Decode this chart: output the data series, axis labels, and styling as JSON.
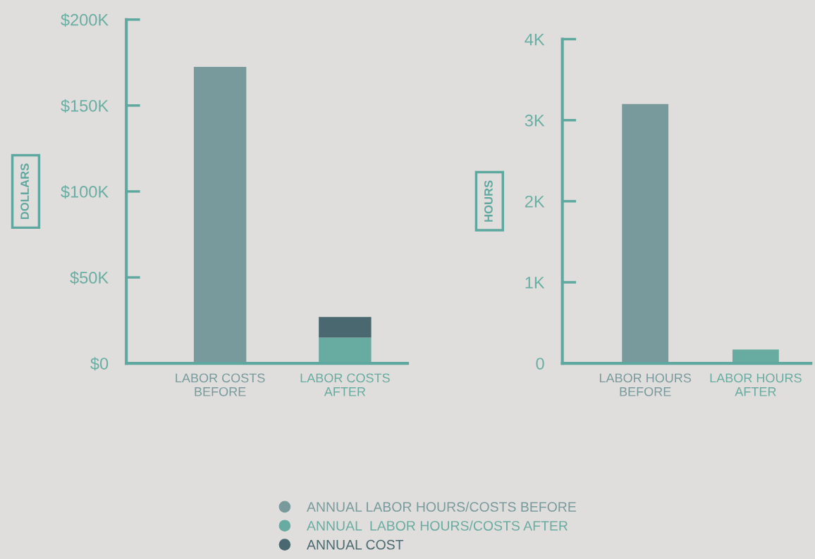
{
  "chart_data": [
    {
      "type": "bar",
      "ylabel": "DOLLARS",
      "categories": [
        "LABOR COSTS\nBEFORE",
        "LABOR COSTS\nAFTER"
      ],
      "stacked": true,
      "series": [
        {
          "name": "ANNUAL LABOR HOURS/COSTS BEFORE",
          "color": "#789a9c",
          "values": [
            172500,
            null
          ]
        },
        {
          "name": "ANNUAL  LABOR HOURS/COSTS AFTER",
          "color": "#68aba0",
          "values": [
            null,
            15000
          ]
        },
        {
          "name": "ANNUAL COST",
          "color": "#4a6870",
          "values": [
            null,
            12000
          ]
        }
      ],
      "ylim": [
        0,
        200000
      ],
      "yticks": [
        {
          "value": 0,
          "label": "$0"
        },
        {
          "value": 50000,
          "label": "$50K"
        },
        {
          "value": 100000,
          "label": "$100K"
        },
        {
          "value": 150000,
          "label": "$150K"
        },
        {
          "value": 200000,
          "label": "$200K"
        }
      ],
      "grid": false,
      "legend": "bottom"
    },
    {
      "type": "bar",
      "ylabel": "HOURS",
      "categories": [
        "LABOR HOURS\nBEFORE",
        "LABOR HOURS\nAFTER"
      ],
      "series": [
        {
          "color": "#789a9c",
          "values": [
            3200,
            null
          ]
        },
        {
          "color": "#68aba0",
          "values": [
            null,
            170
          ]
        }
      ],
      "ylim": [
        0,
        4000
      ],
      "yticks": [
        {
          "value": 0,
          "label": "0"
        },
        {
          "value": 1000,
          "label": "1K"
        },
        {
          "value": 2000,
          "label": "2K"
        },
        {
          "value": 3000,
          "label": "3K"
        },
        {
          "value": 4000,
          "label": "4K"
        }
      ],
      "grid": false
    }
  ]
}
